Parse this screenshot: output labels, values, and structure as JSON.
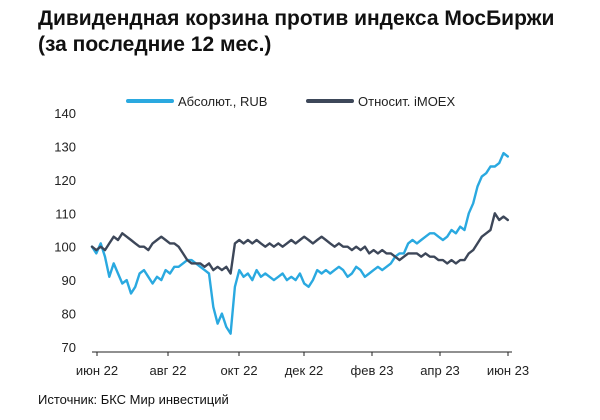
{
  "title": {
    "line1": "Дивидендная корзина против индекса МосБиржи",
    "line2": "(за последние 12 мес.)"
  },
  "source": "Источник: БКС Мир инвестиций",
  "colors": {
    "series_abs": "#2aa9e0",
    "series_rel": "#3d4759",
    "axis": "#222222"
  },
  "chart_data": {
    "type": "line",
    "title": "Дивидендная корзина против индекса МосБиржи (за последние 12 мес.)",
    "xlabel": "",
    "ylabel": "",
    "ylim": [
      70,
      140
    ],
    "yticks": [
      70,
      80,
      90,
      100,
      110,
      120,
      130,
      140
    ],
    "xticks": [
      "июн 22",
      "авг 22",
      "окт 22",
      "дек 22",
      "фев 23",
      "апр 23",
      "июн 23"
    ],
    "x_range": [
      "2022-06-01",
      "2023-06-22"
    ],
    "grid": false,
    "legend_position": "top",
    "series": [
      {
        "name": "Абсолют., RUB",
        "color": "#2aa9e0",
        "points": [
          [
            "2022-06-01",
            100
          ],
          [
            "2022-06-05",
            98
          ],
          [
            "2022-06-09",
            101
          ],
          [
            "2022-06-13",
            97
          ],
          [
            "2022-06-17",
            91
          ],
          [
            "2022-06-21",
            95
          ],
          [
            "2022-06-25",
            92
          ],
          [
            "2022-06-29",
            89
          ],
          [
            "2022-07-03",
            90
          ],
          [
            "2022-07-07",
            86
          ],
          [
            "2022-07-11",
            88
          ],
          [
            "2022-07-15",
            92
          ],
          [
            "2022-07-19",
            93
          ],
          [
            "2022-07-23",
            91
          ],
          [
            "2022-07-27",
            89
          ],
          [
            "2022-07-31",
            91
          ],
          [
            "2022-08-04",
            90
          ],
          [
            "2022-08-08",
            93
          ],
          [
            "2022-08-12",
            92
          ],
          [
            "2022-08-16",
            94
          ],
          [
            "2022-08-20",
            94
          ],
          [
            "2022-08-24",
            95
          ],
          [
            "2022-08-28",
            96
          ],
          [
            "2022-09-01",
            96
          ],
          [
            "2022-09-05",
            95
          ],
          [
            "2022-09-09",
            94
          ],
          [
            "2022-09-13",
            93
          ],
          [
            "2022-09-17",
            92
          ],
          [
            "2022-09-21",
            82
          ],
          [
            "2022-09-25",
            77
          ],
          [
            "2022-09-29",
            80
          ],
          [
            "2022-10-03",
            76
          ],
          [
            "2022-10-07",
            74
          ],
          [
            "2022-10-11",
            88
          ],
          [
            "2022-10-15",
            93
          ],
          [
            "2022-10-19",
            91
          ],
          [
            "2022-10-23",
            92
          ],
          [
            "2022-10-27",
            90
          ],
          [
            "2022-10-31",
            93
          ],
          [
            "2022-11-04",
            91
          ],
          [
            "2022-11-08",
            92
          ],
          [
            "2022-11-12",
            91
          ],
          [
            "2022-11-16",
            90
          ],
          [
            "2022-11-20",
            91
          ],
          [
            "2022-11-24",
            92
          ],
          [
            "2022-11-28",
            90
          ],
          [
            "2022-12-02",
            91
          ],
          [
            "2022-12-06",
            90
          ],
          [
            "2022-12-10",
            92
          ],
          [
            "2022-12-14",
            89
          ],
          [
            "2022-12-18",
            88
          ],
          [
            "2022-12-22",
            90
          ],
          [
            "2022-12-26",
            93
          ],
          [
            "2022-12-30",
            92
          ],
          [
            "2023-01-03",
            93
          ],
          [
            "2023-01-07",
            92
          ],
          [
            "2023-01-11",
            93
          ],
          [
            "2023-01-15",
            94
          ],
          [
            "2023-01-19",
            93
          ],
          [
            "2023-01-23",
            91
          ],
          [
            "2023-01-27",
            92
          ],
          [
            "2023-01-31",
            94
          ],
          [
            "2023-02-04",
            93
          ],
          [
            "2023-02-08",
            91
          ],
          [
            "2023-02-12",
            92
          ],
          [
            "2023-02-16",
            93
          ],
          [
            "2023-02-20",
            94
          ],
          [
            "2023-02-24",
            93
          ],
          [
            "2023-02-28",
            94
          ],
          [
            "2023-03-04",
            95
          ],
          [
            "2023-03-08",
            97
          ],
          [
            "2023-03-12",
            98
          ],
          [
            "2023-03-16",
            98
          ],
          [
            "2023-03-20",
            101
          ],
          [
            "2023-03-24",
            102
          ],
          [
            "2023-03-28",
            101
          ],
          [
            "2023-04-01",
            102
          ],
          [
            "2023-04-05",
            103
          ],
          [
            "2023-04-09",
            104
          ],
          [
            "2023-04-13",
            104
          ],
          [
            "2023-04-17",
            103
          ],
          [
            "2023-04-21",
            102
          ],
          [
            "2023-04-25",
            103
          ],
          [
            "2023-04-29",
            105
          ],
          [
            "2023-05-03",
            104
          ],
          [
            "2023-05-07",
            106
          ],
          [
            "2023-05-11",
            105
          ],
          [
            "2023-05-15",
            110
          ],
          [
            "2023-05-19",
            113
          ],
          [
            "2023-05-23",
            118
          ],
          [
            "2023-05-27",
            121
          ],
          [
            "2023-05-31",
            122
          ],
          [
            "2023-06-04",
            124
          ],
          [
            "2023-06-08",
            124
          ],
          [
            "2023-06-12",
            125
          ],
          [
            "2023-06-16",
            128
          ],
          [
            "2023-06-20",
            127
          ]
        ]
      },
      {
        "name": "Относит. iMOEX",
        "color": "#3d4759",
        "points": [
          [
            "2022-06-01",
            100
          ],
          [
            "2022-06-05",
            99
          ],
          [
            "2022-06-09",
            100
          ],
          [
            "2022-06-13",
            99
          ],
          [
            "2022-06-17",
            101
          ],
          [
            "2022-06-21",
            103
          ],
          [
            "2022-06-25",
            102
          ],
          [
            "2022-06-29",
            104
          ],
          [
            "2022-07-03",
            103
          ],
          [
            "2022-07-07",
            102
          ],
          [
            "2022-07-11",
            101
          ],
          [
            "2022-07-15",
            100
          ],
          [
            "2022-07-19",
            100
          ],
          [
            "2022-07-23",
            99
          ],
          [
            "2022-07-27",
            101
          ],
          [
            "2022-07-31",
            102
          ],
          [
            "2022-08-04",
            103
          ],
          [
            "2022-08-08",
            102
          ],
          [
            "2022-08-12",
            101
          ],
          [
            "2022-08-16",
            101
          ],
          [
            "2022-08-20",
            100
          ],
          [
            "2022-08-24",
            98
          ],
          [
            "2022-08-28",
            96
          ],
          [
            "2022-09-01",
            95
          ],
          [
            "2022-09-05",
            95
          ],
          [
            "2022-09-09",
            95
          ],
          [
            "2022-09-13",
            94
          ],
          [
            "2022-09-17",
            95
          ],
          [
            "2022-09-21",
            93
          ],
          [
            "2022-09-25",
            94
          ],
          [
            "2022-09-29",
            93
          ],
          [
            "2022-10-03",
            94
          ],
          [
            "2022-10-07",
            92
          ],
          [
            "2022-10-11",
            101
          ],
          [
            "2022-10-15",
            102
          ],
          [
            "2022-10-19",
            101
          ],
          [
            "2022-10-23",
            102
          ],
          [
            "2022-10-27",
            101
          ],
          [
            "2022-10-31",
            102
          ],
          [
            "2022-11-04",
            101
          ],
          [
            "2022-11-08",
            100
          ],
          [
            "2022-11-12",
            101
          ],
          [
            "2022-11-16",
            100
          ],
          [
            "2022-11-20",
            101
          ],
          [
            "2022-11-24",
            100
          ],
          [
            "2022-11-28",
            101
          ],
          [
            "2022-12-02",
            102
          ],
          [
            "2022-12-06",
            101
          ],
          [
            "2022-12-10",
            102
          ],
          [
            "2022-12-14",
            103
          ],
          [
            "2022-12-18",
            102
          ],
          [
            "2022-12-22",
            101
          ],
          [
            "2022-12-26",
            102
          ],
          [
            "2022-12-30",
            103
          ],
          [
            "2023-01-03",
            102
          ],
          [
            "2023-01-07",
            101
          ],
          [
            "2023-01-11",
            100
          ],
          [
            "2023-01-15",
            101
          ],
          [
            "2023-01-19",
            100
          ],
          [
            "2023-01-23",
            100
          ],
          [
            "2023-01-27",
            99
          ],
          [
            "2023-01-31",
            100
          ],
          [
            "2023-02-04",
            99
          ],
          [
            "2023-02-08",
            100
          ],
          [
            "2023-02-12",
            98
          ],
          [
            "2023-02-16",
            99
          ],
          [
            "2023-02-20",
            98
          ],
          [
            "2023-02-24",
            99
          ],
          [
            "2023-02-28",
            98
          ],
          [
            "2023-03-04",
            98
          ],
          [
            "2023-03-08",
            97
          ],
          [
            "2023-03-12",
            96
          ],
          [
            "2023-03-16",
            97
          ],
          [
            "2023-03-20",
            98
          ],
          [
            "2023-03-24",
            98
          ],
          [
            "2023-03-28",
            98
          ],
          [
            "2023-04-01",
            97
          ],
          [
            "2023-04-05",
            98
          ],
          [
            "2023-04-09",
            97
          ],
          [
            "2023-04-13",
            97
          ],
          [
            "2023-04-17",
            96
          ],
          [
            "2023-04-21",
            96
          ],
          [
            "2023-04-25",
            95
          ],
          [
            "2023-04-29",
            96
          ],
          [
            "2023-05-03",
            95
          ],
          [
            "2023-05-07",
            96
          ],
          [
            "2023-05-11",
            96
          ],
          [
            "2023-05-15",
            98
          ],
          [
            "2023-05-19",
            99
          ],
          [
            "2023-05-23",
            101
          ],
          [
            "2023-05-27",
            103
          ],
          [
            "2023-05-31",
            104
          ],
          [
            "2023-06-04",
            105
          ],
          [
            "2023-06-08",
            110
          ],
          [
            "2023-06-12",
            108
          ],
          [
            "2023-06-16",
            109
          ],
          [
            "2023-06-20",
            108
          ]
        ]
      }
    ]
  }
}
